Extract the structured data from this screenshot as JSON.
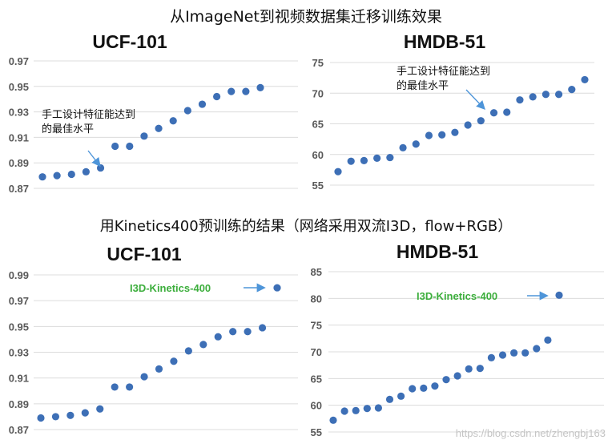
{
  "headings": {
    "top": "从ImageNet到视频数据集迁移训练效果",
    "bottom": "用Kinetics400预训练的结果（网络采用双流I3D，flow+RGB）"
  },
  "watermark": "https://blog.csdn.net/zhengbj163",
  "colors": {
    "point": "#3d6fb6",
    "grid": "#dcdcdc",
    "arrow": "#4e95d9",
    "green_label": "#3cae3c"
  },
  "chart_data": [
    {
      "type": "scatter",
      "title": "UCF-101",
      "ylim": [
        0.87,
        0.97
      ],
      "yticks": [
        "0.97",
        "0.95",
        "0.93",
        "0.91",
        "0.89",
        "0.87"
      ],
      "grid": true,
      "y": [
        0.879,
        0.88,
        0.881,
        0.883,
        0.886,
        0.903,
        0.903,
        0.911,
        0.917,
        0.923,
        0.931,
        0.936,
        0.942,
        0.946,
        0.946,
        0.949
      ],
      "annotations": [
        {
          "text": [
            "手工设计特征能达到",
            "的最佳水平"
          ],
          "point_index": 4
        }
      ]
    },
    {
      "type": "scatter",
      "title": "HMDB-51",
      "ylim": [
        55,
        75
      ],
      "yticks": [
        "75",
        "70",
        "65",
        "60",
        "55"
      ],
      "grid": true,
      "y": [
        57.2,
        58.9,
        59.0,
        59.4,
        59.5,
        61.1,
        61.7,
        63.1,
        63.2,
        63.6,
        64.8,
        65.5,
        66.8,
        66.9,
        68.9,
        69.4,
        69.8,
        69.8,
        70.6,
        72.2
      ],
      "annotations": [
        {
          "text": [
            "手工设计特征能达到",
            "的最佳水平"
          ],
          "point_index": 11
        }
      ]
    },
    {
      "type": "scatter",
      "title": "UCF-101",
      "ylim": [
        0.87,
        0.99
      ],
      "yticks": [
        "0.99",
        "0.97",
        "0.95",
        "0.93",
        "0.91",
        "0.89",
        "0.87"
      ],
      "grid": true,
      "y": [
        0.879,
        0.88,
        0.881,
        0.883,
        0.886,
        0.903,
        0.903,
        0.911,
        0.917,
        0.923,
        0.931,
        0.936,
        0.942,
        0.946,
        0.946,
        0.949,
        0.98
      ],
      "annotations": [
        {
          "text": [
            "I3D-Kinetics-400"
          ],
          "point_index": 16,
          "color": "green"
        }
      ]
    },
    {
      "type": "scatter",
      "title": "HMDB-51",
      "ylim": [
        55,
        85
      ],
      "yticks": [
        "85",
        "80",
        "75",
        "70",
        "65",
        "60",
        "55"
      ],
      "grid": true,
      "y": [
        57.2,
        58.9,
        59.0,
        59.4,
        59.5,
        61.1,
        61.7,
        63.1,
        63.2,
        63.6,
        64.8,
        65.5,
        66.8,
        66.9,
        68.9,
        69.4,
        69.8,
        69.8,
        70.6,
        72.2,
        80.6
      ],
      "annotations": [
        {
          "text": [
            "I3D-Kinetics-400"
          ],
          "point_index": 20,
          "color": "green"
        }
      ]
    }
  ]
}
